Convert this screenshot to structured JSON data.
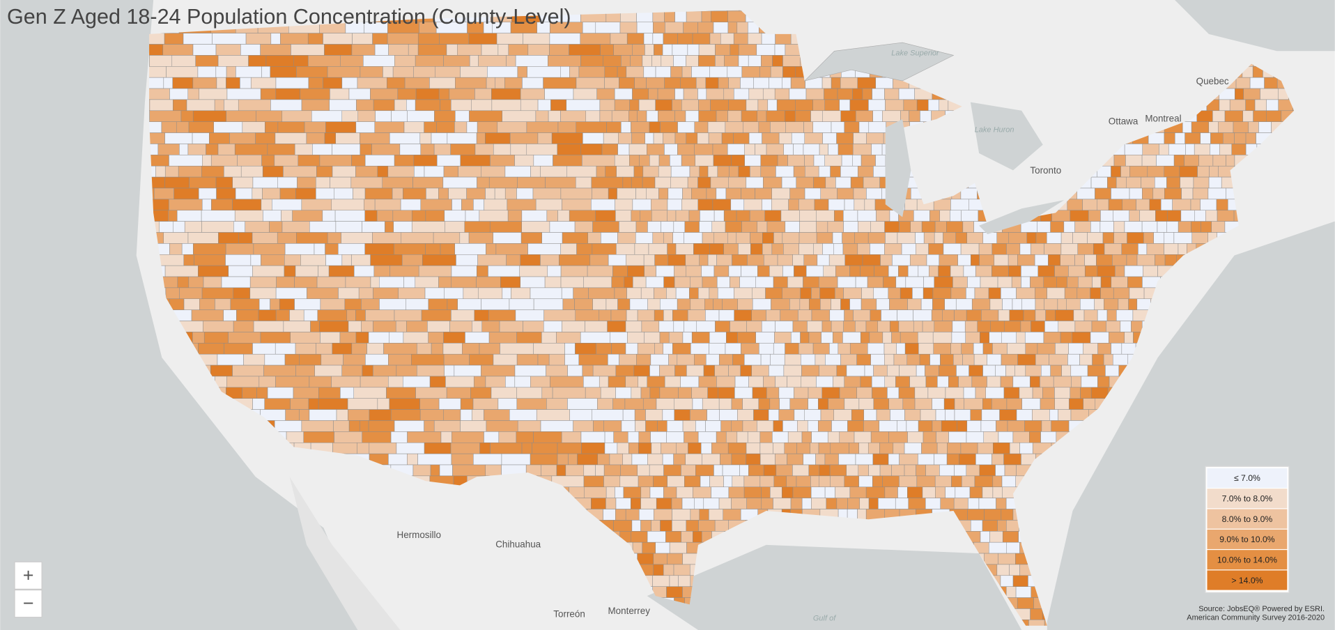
{
  "header": {
    "title": "Gen Z Aged 18-24 Population Concentration (County-Level)"
  },
  "legend": {
    "items": [
      {
        "label": "≤ 7.0%",
        "color": "#eef2fb"
      },
      {
        "label": "7.0% to 8.0%",
        "color": "#f2dccb"
      },
      {
        "label": "8.0% to 9.0%",
        "color": "#eec3a0"
      },
      {
        "label": "9.0% to 10.0%",
        "color": "#e9a76e"
      },
      {
        "label": "10.0% to 14.0%",
        "color": "#e48f43"
      },
      {
        "label": "> 14.0%",
        "color": "#df7d28"
      }
    ]
  },
  "places": [
    "Lake Superior",
    "Lake Huron",
    "Quebec",
    "Ottawa",
    "Montreal",
    "Toronto",
    "Hermosillo",
    "Chihuahua",
    "Torreón",
    "Monterrey",
    "Gulf of"
  ],
  "zoom": {
    "in": "+",
    "out": "−"
  },
  "source": [
    "Source: JobsEQ®   Powered by ESRI.",
    "American Community Survey 2016-2020"
  ]
}
